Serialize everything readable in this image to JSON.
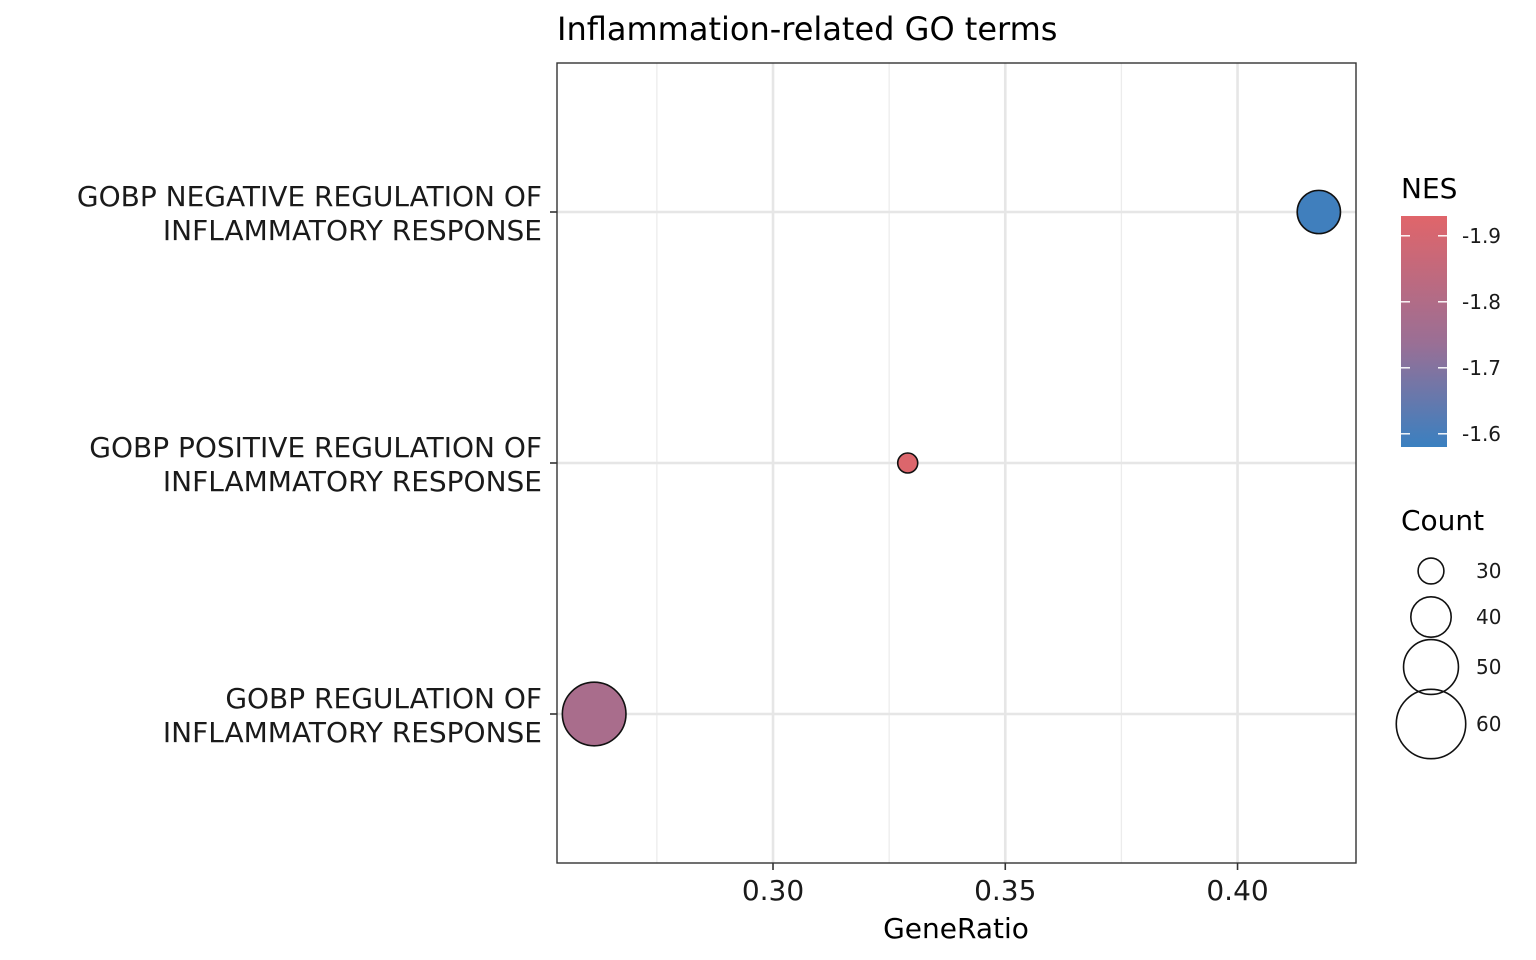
{
  "chart_data": {
    "type": "scatter",
    "title": "Inflammation-related GO terms",
    "xlabel": "GeneRatio",
    "ylabel": "",
    "xlim": [
      0.2535,
      0.4255
    ],
    "x_ticks": [
      "0.30",
      "0.35",
      "0.40"
    ],
    "x_tick_values": [
      0.3,
      0.35,
      0.4
    ],
    "x_minor_values": [
      0.275,
      0.325,
      0.375
    ],
    "grid": true,
    "categories": [
      {
        "line1": "GOBP NEGATIVE REGULATION OF",
        "line2": "INFLAMMATORY RESPONSE"
      },
      {
        "line1": "GOBP POSITIVE REGULATION OF",
        "line2": "INFLAMMATORY RESPONSE"
      },
      {
        "line1": "GOBP REGULATION OF",
        "line2": "INFLAMMATORY RESPONSE"
      }
    ],
    "points": [
      {
        "category_index": 0,
        "x": 0.4175,
        "count": 42,
        "nes": -1.59
      },
      {
        "category_index": 1,
        "x": 0.329,
        "count": 26,
        "nes": -1.92
      },
      {
        "category_index": 2,
        "x": 0.2615,
        "count": 56,
        "nes": -1.78
      }
    ],
    "color_legend": {
      "title": "NES",
      "ticks": [
        "-1.9",
        "-1.8",
        "-1.7",
        "-1.6"
      ],
      "tick_values": [
        -1.9,
        -1.8,
        -1.7,
        -1.6
      ],
      "range": [
        -1.93,
        -1.58
      ],
      "low_color": "#3a80c0",
      "high_color": "#e0656a"
    },
    "size_legend": {
      "title": "Count",
      "labels": [
        "30",
        "40",
        "50",
        "60"
      ],
      "values": [
        30,
        40,
        50,
        60
      ]
    },
    "legend_position": "right"
  }
}
